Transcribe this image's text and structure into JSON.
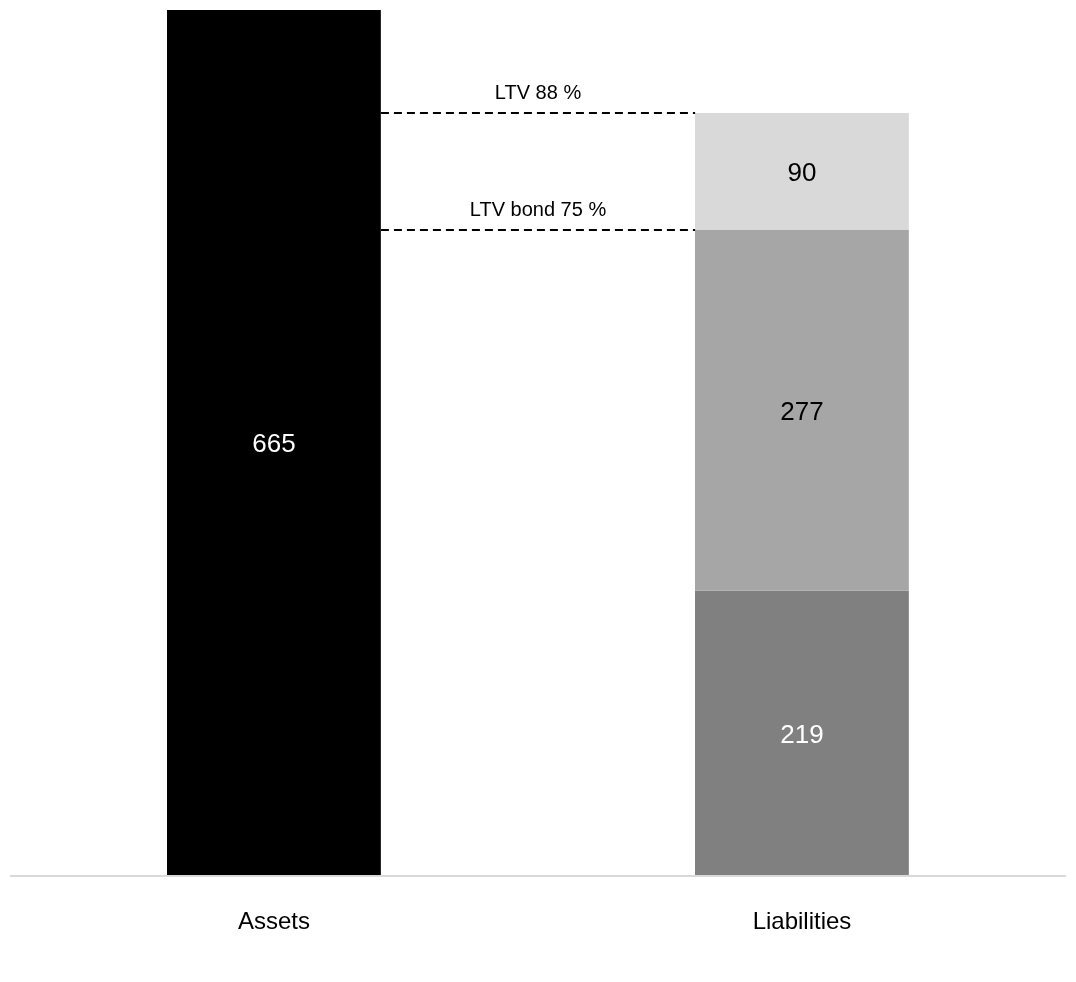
{
  "chart_data": {
    "type": "bar",
    "stacked": true,
    "categories": [
      "Assets",
      "Liabilities"
    ],
    "series": [
      {
        "color": "#000000",
        "values": [
          665,
          null
        ]
      },
      {
        "color": "#808080",
        "values": [
          null,
          219
        ]
      },
      {
        "color": "#a6a6a6",
        "values": [
          null,
          277
        ]
      },
      {
        "color": "#d9d9d9",
        "values": [
          null,
          90
        ]
      }
    ],
    "data_labels": true,
    "ref_lines": [
      {
        "axis": "y",
        "value": 586,
        "label": "LTV 88 %",
        "line_style": "dashed",
        "color": "#000000"
      },
      {
        "axis": "y",
        "value": 496,
        "label": "LTV bond 75 %",
        "line_style": "dashed",
        "color": "#000000"
      }
    ]
  }
}
